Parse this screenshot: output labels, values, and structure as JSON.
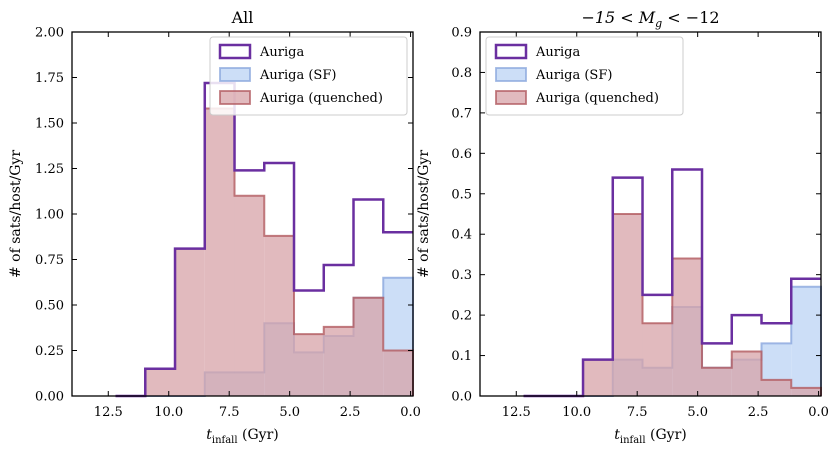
{
  "chart_data": [
    {
      "type": "histogram",
      "title": "All",
      "xlabel": "t",
      "xlabel_sub": "infall",
      "xlabel_unit": " (Gyr)",
      "ylabel": "# of sats/host/Gyr",
      "xlim": [
        14.0,
        -0.1
      ],
      "ylim": [
        0,
        2.0
      ],
      "xticks": [
        12.5,
        10.0,
        7.5,
        5.0,
        2.5,
        0.0
      ],
      "xtick_labels": [
        "12.5",
        "10.0",
        "7.5",
        "5.0",
        "2.5",
        "0.0"
      ],
      "yticks": [
        0,
        0.25,
        0.5,
        0.75,
        1.0,
        1.25,
        1.5,
        1.75,
        2.0
      ],
      "ytick_labels": [
        "0.00",
        "0.25",
        "0.50",
        "0.75",
        "1.00",
        "1.25",
        "1.50",
        "1.75",
        "2.00"
      ],
      "bin_edges": [
        -0.1,
        1.13,
        2.36,
        3.59,
        4.82,
        6.05,
        7.28,
        8.51,
        9.74,
        10.97,
        12.2
      ],
      "series": [
        {
          "name": "Auriga",
          "style": "step",
          "values": [
            0.9,
            1.08,
            0.72,
            0.58,
            1.28,
            1.24,
            1.72,
            0.81,
            0.15,
            0.0
          ]
        },
        {
          "name": "Auriga (SF)",
          "style": "filled",
          "values": [
            0.65,
            0.54,
            0.33,
            0.24,
            0.4,
            0.13,
            0.13,
            0.0,
            0.0,
            0.0
          ]
        },
        {
          "name": "Auriga (quenched)",
          "style": "filled",
          "values": [
            0.25,
            0.54,
            0.38,
            0.34,
            0.88,
            1.1,
            1.58,
            0.81,
            0.15,
            0.0
          ]
        }
      ],
      "legend_location": "top-right"
    },
    {
      "type": "histogram",
      "title": "−15 < M",
      "title_sub": "g",
      "title_suffix": " < −12",
      "xlabel": "t",
      "xlabel_sub": "infall",
      "xlabel_unit": " (Gyr)",
      "ylabel": "# of sats/host/Gyr",
      "xlim": [
        14.0,
        -0.1
      ],
      "ylim": [
        0,
        0.9
      ],
      "xticks": [
        12.5,
        10.0,
        7.5,
        5.0,
        2.5,
        0.0
      ],
      "xtick_labels": [
        "12.5",
        "10.0",
        "7.5",
        "5.0",
        "2.5",
        "0.0"
      ],
      "yticks": [
        0,
        0.1,
        0.2,
        0.3,
        0.4,
        0.5,
        0.6,
        0.7,
        0.8,
        0.9
      ],
      "ytick_labels": [
        "0.0",
        "0.1",
        "0.2",
        "0.3",
        "0.4",
        "0.5",
        "0.6",
        "0.7",
        "0.8",
        "0.9"
      ],
      "bin_edges": [
        -0.1,
        1.13,
        2.36,
        3.59,
        4.82,
        6.05,
        7.28,
        8.51,
        9.74,
        10.97,
        12.2
      ],
      "series": [
        {
          "name": "Auriga",
          "style": "step",
          "values": [
            0.29,
            0.18,
            0.2,
            0.13,
            0.56,
            0.25,
            0.54,
            0.09,
            0.0,
            0.0
          ]
        },
        {
          "name": "Auriga (SF)",
          "style": "filled",
          "values": [
            0.27,
            0.13,
            0.09,
            0.07,
            0.22,
            0.07,
            0.09,
            0.0,
            0.0,
            0.0
          ]
        },
        {
          "name": "Auriga (quenched)",
          "style": "filled",
          "values": [
            0.02,
            0.04,
            0.11,
            0.07,
            0.34,
            0.18,
            0.45,
            0.09,
            0.0,
            0.0
          ]
        }
      ],
      "legend_location": "top-left"
    }
  ],
  "colors": {
    "auriga": "#6a2fa0",
    "sf_fill": "#c9dcf7",
    "sf_edge": "#8aa6dd",
    "quenched_fill": "#d7a3a8",
    "quenched_edge": "#b25a5f"
  }
}
